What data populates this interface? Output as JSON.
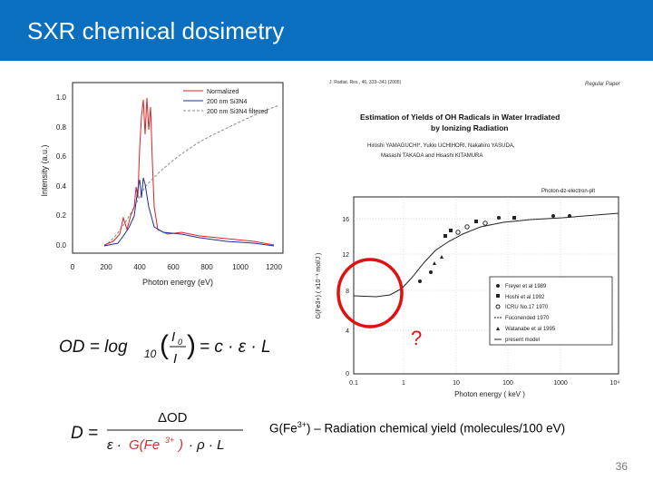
{
  "slide": {
    "title": "SXR chemical dosimetry",
    "page_number": "36",
    "header_color": "#0b6fc0"
  },
  "left_chart": {
    "ylabel": "Intensity (a.u.)",
    "xlabel": "Photon energy (eV)",
    "xticks": [
      "0",
      "200",
      "400",
      "600",
      "800",
      "1000",
      "1200"
    ],
    "yticks": [
      "0.0",
      "0.2",
      "0.4",
      "0.6",
      "0.8",
      "1.0"
    ],
    "legend": [
      "Normalized",
      "200 nm Si3N4",
      "200 nm Si3N4 filtered"
    ]
  },
  "paper": {
    "journal": "J. Radiat. Res., 46, 333–341 (2005)",
    "tag": "Regular Paper",
    "title_line1": "Estimation of Yields of OH Radicals in Water Irradiated",
    "title_line2": "by Ionizing Radiation",
    "authors_line1": "Hiroshi YAMAGUCHI*, Yukio UCHIHORI, Nakahiro YASUDA,",
    "authors_line2": "Masashi TAKADA and Hisashi KITAMURA"
  },
  "right_chart": {
    "corner_label": "Photon-dz-electron-plt",
    "ylabel": "G(Fe3+) ( x10⁻¹ mol/J )",
    "xlabel": "Photon energy ( keV )",
    "xticks": [
      "0.1",
      "1",
      "10",
      "100",
      "1000",
      "10⁴"
    ],
    "yticks": [
      "0",
      "4",
      "8",
      "12",
      "16"
    ],
    "legend": [
      "Freyer et al 1989",
      "Hoshi et al 1992",
      "ICRU No.17 1970",
      "Fuconended 1970",
      "Watanabe et al 1995",
      "present model"
    ],
    "question_mark": "?"
  },
  "equations": {
    "od_lhs": "OD = log",
    "od_sub": "10",
    "od_num": "I",
    "od_num_sub": "0",
    "od_den": "I",
    "od_rhs": "= c · ε · L",
    "d_lhs": "D =",
    "d_num": "ΔOD",
    "d_den_pre": "ε ·",
    "d_den_g": "G(Fe",
    "d_den_sup": "3+",
    "d_den_close": ")",
    "d_den_post": "· ρ · L",
    "g_color": "#d0312d"
  },
  "caption": {
    "prefix": "G(Fe",
    "sup": "3+",
    "rest": ") – Radiation chemical yield (molecules/100 eV)"
  }
}
